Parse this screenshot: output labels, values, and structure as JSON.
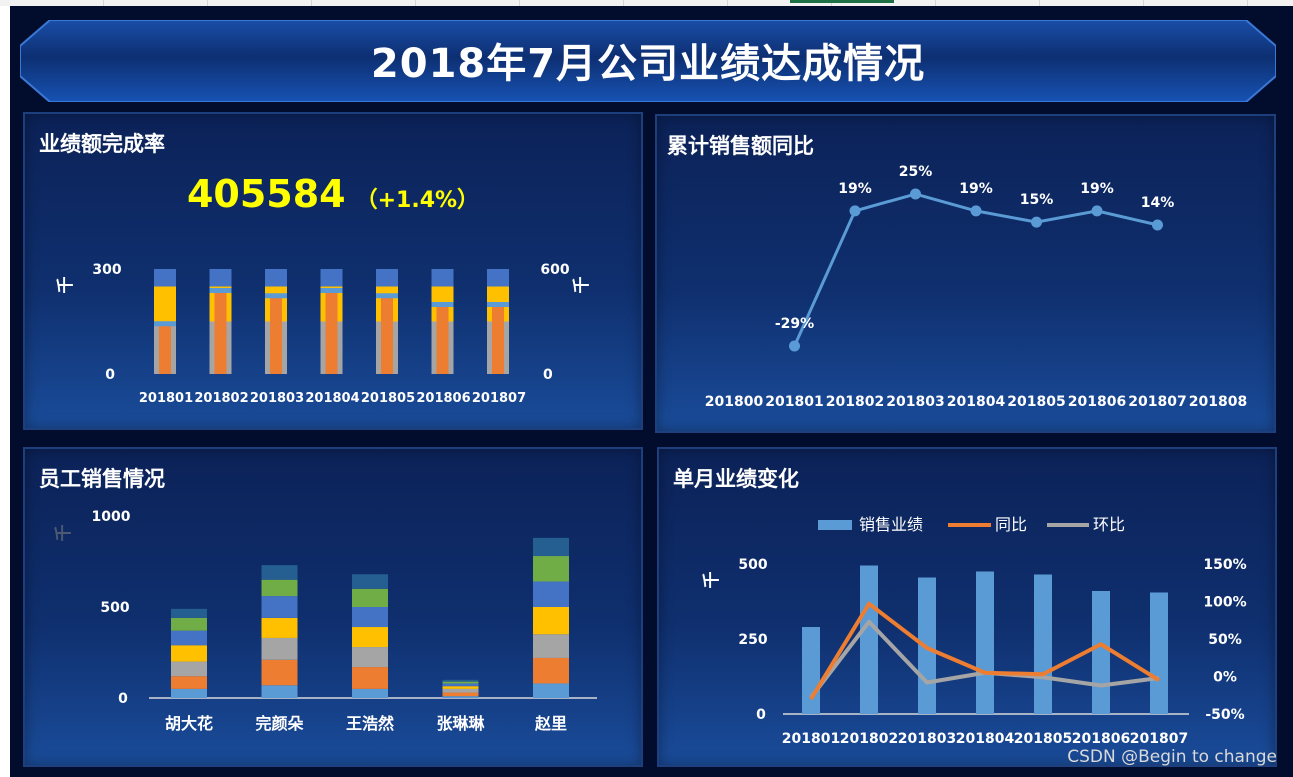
{
  "dashboard": {
    "title": "2018年7月公司业绩达成情况",
    "watermark": "CSDN @Begin to change"
  },
  "kpi": {
    "value": "405584",
    "change": "（+1.4%）"
  },
  "chart_data": [
    {
      "id": "completion",
      "type": "bar",
      "stacked": true,
      "title": "业绩额完成率",
      "ylabel": "千",
      "y2label": "千",
      "ylim": [
        0,
        300
      ],
      "y2lim": [
        0,
        600
      ],
      "yticks": [
        "300",
        "0"
      ],
      "y2ticks": [
        "600",
        "0"
      ],
      "categories": [
        "201801",
        "201802",
        "201803",
        "201804",
        "201805",
        "201806",
        "201807"
      ],
      "target_segments": {
        "gray": 150,
        "yellow": 100,
        "blue": 50
      },
      "actual": [
        145,
        240,
        225,
        240,
        225,
        200,
        200
      ],
      "colors": {
        "gray": "#a5a5a5",
        "yellow": "#ffc000",
        "blue": "#4472c4",
        "actual": "#ed7d31",
        "marker": "#5b9bd5"
      }
    },
    {
      "id": "yoy",
      "type": "line",
      "title": "累计销售额同比",
      "categories": [
        "201800",
        "201801",
        "201802",
        "201803",
        "201804",
        "201805",
        "201806",
        "201807",
        "201808"
      ],
      "values": [
        null,
        -29,
        19,
        25,
        19,
        15,
        19,
        14,
        null
      ],
      "labels": [
        "",
        "-29%",
        "19%",
        "25%",
        "19%",
        "15%",
        "19%",
        "14%",
        ""
      ],
      "color": "#5b9bd5"
    },
    {
      "id": "employee",
      "type": "bar",
      "stacked": true,
      "title": "员工销售情况",
      "ylabel": "千",
      "ylim": [
        0,
        1000
      ],
      "yticks": [
        "1000",
        "500",
        "0"
      ],
      "categories": [
        "胡大花",
        "完颜朵",
        "王浩然",
        "张琳琳",
        "赵里"
      ],
      "series_colors": [
        "#5b9bd5",
        "#ed7d31",
        "#a5a5a5",
        "#ffc000",
        "#4472c4",
        "#70ad47",
        "#255e91"
      ],
      "series_values": [
        [
          50,
          70,
          80,
          90,
          80,
          70,
          50
        ],
        [
          70,
          140,
          120,
          110,
          120,
          90,
          80
        ],
        [
          50,
          120,
          110,
          110,
          110,
          100,
          80
        ],
        [
          10,
          20,
          20,
          15,
          15,
          10,
          10
        ],
        [
          80,
          140,
          130,
          150,
          140,
          140,
          100
        ]
      ]
    },
    {
      "id": "monthly",
      "type": "bar",
      "title": "单月业绩变化",
      "ylabel": "千",
      "ylim": [
        0,
        500
      ],
      "yticks": [
        "500",
        "250",
        "0"
      ],
      "y2lim": [
        -50,
        150
      ],
      "y2ticks": [
        "150%",
        "100%",
        "50%",
        "0%",
        "-50%"
      ],
      "categories": [
        "201801",
        "201802",
        "201803",
        "201804",
        "201805",
        "201806",
        "201807"
      ],
      "legend": [
        "销售业绩",
        "同比",
        "环比"
      ],
      "bars": [
        290,
        495,
        455,
        475,
        465,
        410,
        405
      ],
      "yoy": [
        -30,
        97,
        38,
        5,
        3,
        43,
        -5
      ],
      "mom": [
        -28,
        73,
        -8,
        5,
        -1,
        -12,
        -2
      ],
      "colors": {
        "bars": "#5b9bd5",
        "yoy": "#ed7d31",
        "mom": "#a5a5a5"
      }
    }
  ]
}
